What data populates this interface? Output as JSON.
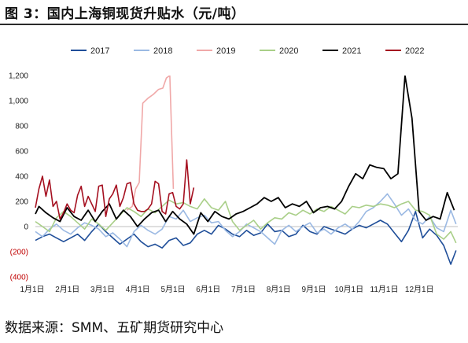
{
  "figure": {
    "title": "图 3：国内上海铜现货升贴水（元/吨）",
    "source": "数据来源：SMM、五矿期货研究中心"
  },
  "chart_data": {
    "type": "line",
    "title": "国内上海铜现货升贴水（元/吨）",
    "xlabel": "",
    "ylabel": "",
    "ylim": [
      -400,
      1200
    ],
    "yticks": [
      -400,
      -200,
      0,
      200,
      400,
      600,
      800,
      1000,
      1200
    ],
    "ytick_labels": [
      "(400)",
      "(200)",
      "0",
      "200",
      "400",
      "600",
      "800",
      "1,000",
      "1,200"
    ],
    "xlim": [
      0,
      12
    ],
    "xticks": [
      0,
      1,
      2,
      3,
      4,
      5,
      6,
      7,
      8,
      9,
      10,
      11
    ],
    "xtick_labels": [
      "1月1日",
      "2月1日",
      "3月1日",
      "4月1日",
      "5月1日",
      "6月1日",
      "7月1日",
      "8月1日",
      "9月1日",
      "10月1日",
      "11月1日",
      "12月1日"
    ],
    "grid": false,
    "legend": "top",
    "x_unit": "月份（1月1日 = 0）",
    "series": [
      {
        "name": "2017",
        "color": "#1f4e99",
        "x": [
          0,
          0.2,
          0.4,
          0.6,
          0.8,
          1.0,
          1.2,
          1.4,
          1.6,
          1.8,
          2.0,
          2.2,
          2.4,
          2.6,
          2.8,
          3.0,
          3.2,
          3.4,
          3.6,
          3.8,
          4.0,
          4.2,
          4.4,
          4.6,
          4.8,
          5.0,
          5.2,
          5.4,
          5.6,
          5.8,
          6.0,
          6.2,
          6.4,
          6.6,
          6.8,
          7.0,
          7.2,
          7.4,
          7.6,
          7.8,
          8.0,
          8.2,
          8.4,
          8.6,
          8.8,
          9.0,
          9.2,
          9.4,
          9.6,
          9.8,
          10.0,
          10.2,
          10.4,
          10.6,
          10.8,
          11.0,
          11.2,
          11.4,
          11.6,
          11.8,
          11.95
        ],
        "y": [
          -110,
          -80,
          -60,
          -90,
          -120,
          -90,
          -60,
          -110,
          -40,
          20,
          -40,
          -90,
          -140,
          -100,
          -60,
          -120,
          -160,
          -140,
          -170,
          -110,
          -90,
          -150,
          -130,
          -60,
          -30,
          -60,
          10,
          -20,
          -60,
          -80,
          -30,
          -70,
          -50,
          20,
          -40,
          -30,
          -80,
          -60,
          10,
          -40,
          -60,
          0,
          -20,
          -40,
          -60,
          -20,
          10,
          -10,
          20,
          50,
          20,
          -50,
          -120,
          -30,
          120,
          -90,
          -20,
          -70,
          -150,
          -300,
          -190
        ]
      },
      {
        "name": "2018",
        "color": "#9bb9e3",
        "x": [
          0,
          0.2,
          0.4,
          0.6,
          0.8,
          1.0,
          1.2,
          1.4,
          1.6,
          1.8,
          2.0,
          2.2,
          2.4,
          2.6,
          2.8,
          3.0,
          3.2,
          3.4,
          3.6,
          3.8,
          4.0,
          4.2,
          4.4,
          4.6,
          4.8,
          5.0,
          5.2,
          5.4,
          5.6,
          5.8,
          6.0,
          6.2,
          6.4,
          6.6,
          6.8,
          7.0,
          7.2,
          7.4,
          7.6,
          7.8,
          8.0,
          8.2,
          8.4,
          8.6,
          8.8,
          9.0,
          9.2,
          9.4,
          9.6,
          9.8,
          10.0,
          10.2,
          10.4,
          10.6,
          10.8,
          11.0,
          11.2,
          11.4,
          11.6,
          11.8,
          11.95
        ],
        "y": [
          -40,
          -80,
          -20,
          20,
          -30,
          -60,
          -10,
          30,
          10,
          -20,
          -80,
          -50,
          -100,
          -160,
          -40,
          10,
          -30,
          -60,
          -20,
          80,
          60,
          130,
          40,
          70,
          90,
          30,
          40,
          -30,
          -80,
          -40,
          20,
          -10,
          -40,
          -90,
          -140,
          -30,
          10,
          -40,
          0,
          30,
          -50,
          -20,
          -60,
          -10,
          20,
          -20,
          40,
          120,
          150,
          200,
          260,
          180,
          90,
          140,
          50,
          20,
          80,
          -10,
          -40,
          130,
          20
        ]
      },
      {
        "name": "2019",
        "color": "#f0a8a8",
        "x": [
          2.6,
          2.75,
          2.85,
          2.95,
          3.05,
          3.2,
          3.35,
          3.5,
          3.62,
          3.72,
          3.82,
          3.92
        ],
        "y": [
          130,
          160,
          300,
          350,
          980,
          1020,
          1050,
          1090,
          1100,
          1180,
          1200,
          300
        ]
      },
      {
        "name": "2020",
        "color": "#a9cf88",
        "x": [
          0,
          0.2,
          0.4,
          0.6,
          0.8,
          1.0,
          1.2,
          1.4,
          1.6,
          1.8,
          2.0,
          2.2,
          2.4,
          2.6,
          2.8,
          3.0,
          3.2,
          3.4,
          3.6,
          3.8,
          4.0,
          4.2,
          4.4,
          4.6,
          4.8,
          5.0,
          5.2,
          5.4,
          5.6,
          5.8,
          6.0,
          6.2,
          6.4,
          6.6,
          6.8,
          7.0,
          7.2,
          7.4,
          7.6,
          7.8,
          8.0,
          8.2,
          8.4,
          8.6,
          8.8,
          9.0,
          9.2,
          9.4,
          9.6,
          9.8,
          10.0,
          10.2,
          10.4,
          10.6,
          10.8,
          11.0,
          11.2,
          11.4,
          11.6,
          11.8,
          11.95
        ],
        "y": [
          40,
          0,
          -40,
          70,
          120,
          80,
          30,
          -20,
          60,
          20,
          -30,
          30,
          90,
          150,
          120,
          80,
          140,
          110,
          160,
          210,
          180,
          190,
          160,
          140,
          220,
          150,
          130,
          200,
          40,
          -30,
          10,
          50,
          -20,
          30,
          70,
          60,
          110,
          90,
          130,
          100,
          140,
          120,
          160,
          130,
          100,
          160,
          150,
          170,
          160,
          180,
          170,
          150,
          180,
          200,
          130,
          120,
          90,
          -60,
          -100,
          -40,
          -130
        ]
      },
      {
        "name": "2021",
        "color": "#000000",
        "x": [
          0,
          0.1,
          0.3,
          0.5,
          0.7,
          0.9,
          1.1,
          1.3,
          1.5,
          1.7,
          1.9,
          2.1,
          2.3,
          2.5,
          2.7,
          2.9,
          3.1,
          3.3,
          3.5,
          3.7,
          3.9,
          4.1,
          4.3,
          4.5,
          4.7,
          4.9,
          5.1,
          5.3,
          5.5,
          5.7,
          5.9,
          6.1,
          6.3,
          6.5,
          6.7,
          6.9,
          7.1,
          7.3,
          7.5,
          7.7,
          7.9,
          8.1,
          8.3,
          8.5,
          8.7,
          8.9,
          9.1,
          9.3,
          9.5,
          9.7,
          9.9,
          10.1,
          10.3,
          10.5,
          10.7,
          10.9,
          11.1,
          11.3,
          11.5,
          11.7,
          11.9
        ],
        "y": [
          100,
          160,
          110,
          70,
          40,
          150,
          80,
          50,
          130,
          40,
          120,
          180,
          60,
          130,
          80,
          0,
          60,
          110,
          130,
          40,
          120,
          60,
          20,
          -60,
          110,
          40,
          120,
          80,
          60,
          100,
          120,
          150,
          180,
          230,
          200,
          230,
          150,
          180,
          160,
          200,
          110,
          150,
          160,
          140,
          200,
          320,
          420,
          380,
          490,
          470,
          460,
          380,
          420,
          1200,
          860,
          120,
          50,
          80,
          60,
          270,
          130
        ]
      },
      {
        "name": "2022",
        "color": "#a51020",
        "x": [
          0,
          0.1,
          0.2,
          0.3,
          0.4,
          0.5,
          0.6,
          0.7,
          0.8,
          0.9,
          1.0,
          1.1,
          1.2,
          1.3,
          1.4,
          1.5,
          1.6,
          1.7,
          1.8,
          1.9,
          2.0,
          2.1,
          2.2,
          2.3,
          2.4,
          2.5,
          2.6,
          2.7,
          2.8,
          2.9,
          3.0,
          3.1,
          3.2,
          3.3,
          3.4,
          3.5,
          3.6,
          3.7,
          3.8,
          3.9,
          4.0,
          4.1,
          4.2,
          4.3,
          4.4,
          4.5
        ],
        "y": [
          150,
          300,
          400,
          240,
          370,
          160,
          200,
          60,
          110,
          180,
          130,
          110,
          250,
          320,
          160,
          240,
          180,
          120,
          320,
          330,
          80,
          220,
          260,
          330,
          160,
          230,
          340,
          350,
          180,
          130,
          120,
          120,
          140,
          180,
          360,
          340,
          120,
          100,
          260,
          270,
          160,
          140,
          180,
          530,
          180,
          310
        ]
      }
    ]
  }
}
